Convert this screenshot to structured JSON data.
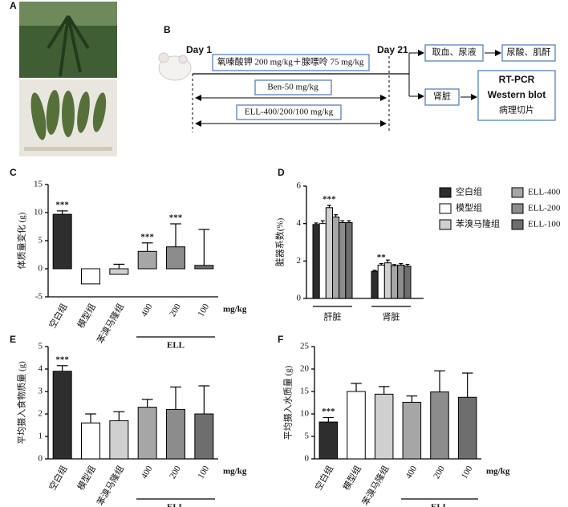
{
  "panel_labels": [
    "A",
    "B",
    "C",
    "D",
    "E",
    "F"
  ],
  "diagram": {
    "day_start": "Day 1",
    "day_end": "Day 21",
    "model_box": "氧嗪酸钾 200 mg/kg＋腺嘌呤 75 mg/kg",
    "ben_box": "Ben-50 mg/kg",
    "ell_box": "ELL-400/200/100 mg/kg",
    "sample_box": "取血、尿液",
    "sample_result": "尿酸、肌酐",
    "kidney_box": "肾脏",
    "kidney_results": [
      "RT-PCR",
      "Western blot",
      "病理切片"
    ]
  },
  "chart_data": [
    {
      "type": "bar",
      "ylabel": "体质量变化 (g)",
      "categories": [
        "空白组",
        "模型组",
        "苯溴马隆组",
        "400",
        "200",
        "100"
      ],
      "values": [
        9.7,
        -2.7,
        -1.0,
        3.1,
        3.9,
        0.6
      ],
      "errors": [
        0.6,
        1.7,
        1.8,
        1.5,
        4.1,
        6.4
      ],
      "significance": [
        "***",
        null,
        null,
        "***",
        "***",
        null
      ],
      "colors": [
        "#2e2e2e",
        "#ffffff",
        "#d0d0d0",
        "#a6a6a6",
        "#8c8c8c",
        "#6e6e6e"
      ],
      "ylim": [
        -5,
        15
      ],
      "yticks": [
        -5,
        0,
        5,
        10,
        15
      ],
      "unit": "mg/kg",
      "group_label": "ELL"
    },
    {
      "type": "grouped_bar",
      "ylabel": "脏器系数(%)",
      "categories": [
        "肝脏",
        "肾脏"
      ],
      "series": [
        {
          "name": "空白组",
          "color": "#2e2e2e",
          "values": [
            3.95,
            1.45
          ],
          "errors": [
            0.08,
            0.05
          ],
          "significance": [
            null,
            null
          ]
        },
        {
          "name": "模型组",
          "color": "#ffffff",
          "values": [
            4.0,
            1.78
          ],
          "errors": [
            0.15,
            0.08
          ],
          "significance": [
            null,
            "**"
          ]
        },
        {
          "name": "苯溴马隆组",
          "color": "#d0d0d0",
          "values": [
            4.85,
            1.9
          ],
          "errors": [
            0.12,
            0.15
          ],
          "significance": [
            "***",
            null
          ]
        },
        {
          "name": "ELL-400",
          "color": "#a6a6a6",
          "values": [
            4.35,
            1.75
          ],
          "errors": [
            0.12,
            0.06
          ],
          "significance": [
            null,
            null
          ]
        },
        {
          "name": "ELL-200",
          "color": "#8c8c8c",
          "values": [
            4.05,
            1.78
          ],
          "errors": [
            0.1,
            0.08
          ],
          "significance": [
            null,
            null
          ]
        },
        {
          "name": "ELL-100",
          "color": "#6e6e6e",
          "values": [
            4.05,
            1.72
          ],
          "errors": [
            0.1,
            0.1
          ],
          "significance": [
            null,
            null
          ]
        }
      ],
      "ylim": [
        0,
        6
      ],
      "yticks": [
        0,
        2,
        4,
        6
      ]
    },
    {
      "type": "bar",
      "ylabel": "平均摄入食物质量 (g)",
      "categories": [
        "空白组",
        "模型组",
        "苯溴马隆组",
        "400",
        "200",
        "100"
      ],
      "values": [
        3.9,
        1.6,
        1.7,
        2.3,
        2.2,
        2.0
      ],
      "errors": [
        0.25,
        0.4,
        0.4,
        0.35,
        1.0,
        1.25
      ],
      "significance": [
        "***",
        null,
        null,
        null,
        null,
        null
      ],
      "colors": [
        "#2e2e2e",
        "#ffffff",
        "#d0d0d0",
        "#a6a6a6",
        "#8c8c8c",
        "#6e6e6e"
      ],
      "ylim": [
        0,
        5
      ],
      "yticks": [
        0,
        1,
        2,
        3,
        4,
        5
      ],
      "unit": "mg/kg",
      "group_label": "ELL"
    },
    {
      "type": "bar",
      "ylabel": "平均摄入水质量 (g)",
      "categories": [
        "空白组",
        "模型组",
        "苯溴马隆组",
        "400",
        "200",
        "100"
      ],
      "values": [
        8.2,
        15.0,
        14.4,
        12.6,
        14.9,
        13.7
      ],
      "errors": [
        1.0,
        1.8,
        1.7,
        1.4,
        4.7,
        5.4
      ],
      "significance": [
        "***",
        null,
        null,
        null,
        null,
        null
      ],
      "colors": [
        "#2e2e2e",
        "#ffffff",
        "#d0d0d0",
        "#a6a6a6",
        "#8c8c8c",
        "#6e6e6e"
      ],
      "ylim": [
        0,
        25
      ],
      "yticks": [
        0,
        5,
        10,
        15,
        20,
        25
      ],
      "unit": "mg/kg",
      "group_label": "ELL"
    }
  ]
}
